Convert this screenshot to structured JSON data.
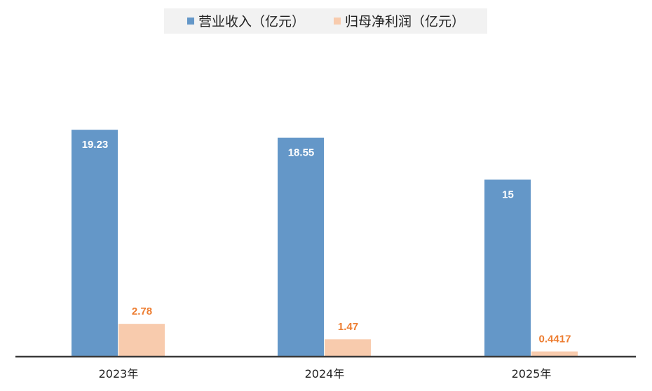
{
  "chart_data": {
    "type": "bar",
    "categories": [
      "2023年",
      "2024年",
      "2025年"
    ],
    "series": [
      {
        "name": "营业收入（亿元）",
        "values": [
          19.23,
          18.55,
          15
        ],
        "labels": [
          "19.23",
          "18.55",
          "15"
        ],
        "color": "#6497c8",
        "label_color": "#ffffff"
      },
      {
        "name": "归母净利润（亿元）",
        "values": [
          2.78,
          1.47,
          0.4417
        ],
        "labels": [
          "2.78",
          "1.47",
          "0.4417"
        ],
        "color": "#f8cbad",
        "label_color": "#ed7d31"
      }
    ],
    "ylim": [
      0,
      25
    ],
    "grid": false,
    "legend_position": "top-center",
    "title": "",
    "xlabel": "",
    "ylabel": ""
  }
}
